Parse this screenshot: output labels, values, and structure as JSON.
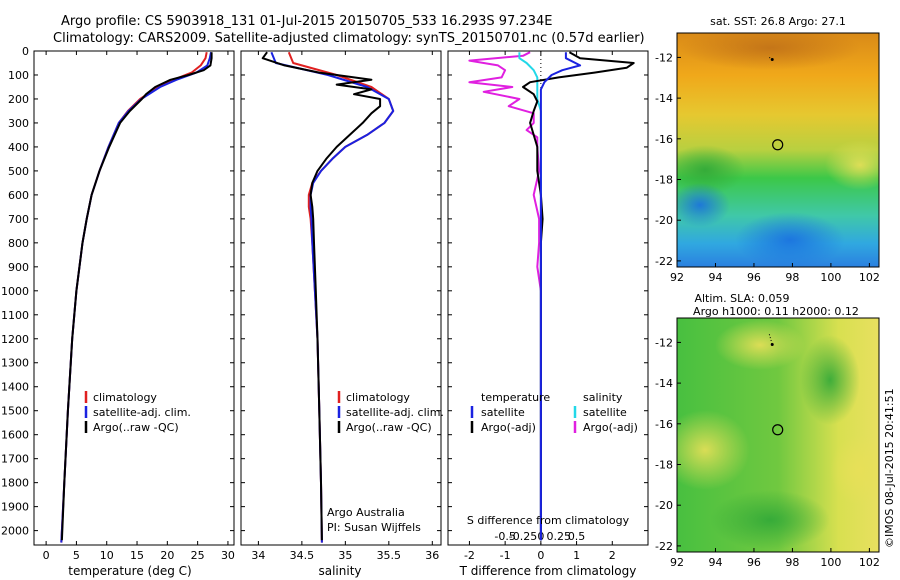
{
  "header": {
    "line1": "Argo profile: CS 5903918_131 01-Jul-2015 20150705_533 16.293S 97.234E",
    "line2": "Climatology: CARS2009. Satellite-adjusted climatology: synTS_20150701.nc (0.57d earlier)"
  },
  "depth_axis": {
    "ticks": [
      0,
      100,
      200,
      300,
      400,
      500,
      600,
      700,
      800,
      900,
      1000,
      1100,
      1200,
      1300,
      1400,
      1500,
      1600,
      1700,
      1800,
      1900,
      2000
    ],
    "range": [
      0,
      2060
    ]
  },
  "colors": {
    "climatology": "#e02020",
    "satellite": "#1a22e0",
    "argo": "#000000",
    "salinity_sat": "#22d8e8",
    "salinity_argo": "#e020e0"
  },
  "chart_data": [
    {
      "type": "line",
      "name": "temperature",
      "xlabel": "temperature (deg C)",
      "xlim": [
        -2,
        31
      ],
      "xticks": [
        0,
        5,
        10,
        15,
        20,
        25,
        30
      ],
      "legend": [
        "climatology",
        "satellite-adj. clim.",
        "Argo(..raw -QC)"
      ],
      "series": [
        {
          "name": "climatology",
          "depth": [
            5,
            30,
            60,
            90,
            120,
            150,
            200,
            250,
            300,
            400,
            500,
            600,
            700,
            800,
            1000,
            1200,
            1500,
            1800,
            2050
          ],
          "values": [
            26.5,
            26.3,
            25.5,
            24.0,
            21.0,
            18.5,
            15.5,
            13.5,
            12.0,
            10.3,
            8.8,
            7.5,
            6.7,
            6.0,
            5.0,
            4.3,
            3.6,
            3.0,
            2.5
          ]
        },
        {
          "name": "satellite",
          "depth": [
            5,
            30,
            60,
            90,
            120,
            150,
            200,
            250,
            300,
            400,
            500,
            600,
            700,
            800,
            1000,
            1200,
            1500,
            1800,
            2050
          ],
          "values": [
            27.2,
            27.0,
            26.6,
            24.8,
            21.5,
            18.8,
            15.7,
            13.6,
            12.0,
            10.3,
            8.8,
            7.5,
            6.7,
            6.0,
            5.0,
            4.3,
            3.6,
            3.0,
            2.5
          ]
        },
        {
          "name": "argo",
          "depth": [
            5,
            30,
            60,
            80,
            100,
            120,
            150,
            180,
            200,
            250,
            300,
            400,
            500,
            600,
            700,
            800,
            1000,
            1200,
            1500,
            1800,
            2040
          ],
          "values": [
            27.3,
            27.3,
            27.1,
            26.0,
            23.5,
            20.5,
            18.0,
            16.5,
            15.8,
            13.8,
            12.2,
            10.4,
            8.8,
            7.5,
            6.7,
            6.0,
            5.0,
            4.3,
            3.6,
            3.0,
            2.6
          ]
        }
      ]
    },
    {
      "type": "line",
      "name": "salinity",
      "xlabel": "salinity",
      "xlim": [
        33.8,
        36.1
      ],
      "xticks": [
        34,
        34.5,
        35,
        35.5,
        36
      ],
      "legend": [
        "climatology",
        "satellite-adj. clim.",
        "Argo(..raw -QC)"
      ],
      "annotations": [
        "Argo Australia",
        "PI: Susan Wijffels"
      ],
      "series": [
        {
          "name": "climatology",
          "depth": [
            5,
            50,
            100,
            150,
            200,
            250,
            300,
            350,
            400,
            450,
            500,
            550,
            600,
            650,
            700,
            800,
            1000,
            1200,
            1500,
            1800,
            2050
          ],
          "values": [
            34.35,
            34.4,
            34.9,
            35.3,
            35.5,
            35.55,
            35.45,
            35.25,
            35.0,
            34.85,
            34.72,
            34.62,
            34.58,
            34.58,
            34.6,
            34.62,
            34.65,
            34.68,
            34.7,
            34.72,
            34.73
          ]
        },
        {
          "name": "satellite",
          "depth": [
            5,
            50,
            100,
            150,
            200,
            250,
            300,
            350,
            400,
            450,
            500,
            550,
            600,
            650,
            700,
            800,
            1000,
            1200,
            1500,
            1800,
            2050
          ],
          "values": [
            34.15,
            34.2,
            34.8,
            35.25,
            35.5,
            35.55,
            35.45,
            35.25,
            35.0,
            34.85,
            34.72,
            34.63,
            34.6,
            34.6,
            34.61,
            34.62,
            34.65,
            34.68,
            34.7,
            34.72,
            34.73
          ]
        },
        {
          "name": "argo",
          "depth": [
            5,
            30,
            60,
            90,
            120,
            140,
            160,
            180,
            200,
            230,
            260,
            300,
            350,
            400,
            450,
            500,
            550,
            600,
            650,
            700,
            800,
            1000,
            1200,
            1500,
            1800,
            2040
          ],
          "values": [
            34.1,
            34.05,
            34.3,
            34.7,
            35.3,
            34.9,
            35.3,
            35.1,
            35.4,
            35.4,
            35.3,
            35.2,
            35.05,
            34.9,
            34.78,
            34.68,
            34.62,
            34.6,
            34.62,
            34.63,
            34.64,
            34.66,
            34.68,
            34.7,
            34.72,
            34.73
          ]
        }
      ]
    },
    {
      "type": "line",
      "name": "difference",
      "xlabel": "T difference from climatology",
      "top_label": "S difference from climatology",
      "xlim": [
        -2.6,
        3.0
      ],
      "xticks": [
        -2,
        -1,
        0,
        1,
        2
      ],
      "top_ticks": [
        -0.5,
        -0.25,
        0,
        0.25,
        0.5
      ],
      "legend_temperature": [
        "temperature",
        "satellite",
        "Argo(-adj)"
      ],
      "legend_salinity": [
        "salinity",
        "satellite",
        "Argo(-adj)"
      ],
      "series": [
        {
          "name": "temperature satellite",
          "depth": [
            5,
            30,
            60,
            80,
            100,
            130,
            160,
            200,
            250,
            300,
            400,
            600,
            1000,
            1500,
            2040
          ],
          "values": [
            0.7,
            0.7,
            1.1,
            0.6,
            0.3,
            0.1,
            0.0,
            0.0,
            0.0,
            0.0,
            0.0,
            0.0,
            0.0,
            0.0,
            0.0
          ]
        },
        {
          "name": "temperature Argo",
          "depth": [
            5,
            30,
            50,
            70,
            90,
            110,
            130,
            150,
            180,
            210,
            250,
            300,
            350,
            400,
            500,
            600,
            700,
            800,
            1000,
            1500,
            2040
          ],
          "values": [
            0.8,
            1.1,
            2.6,
            2.4,
            1.5,
            0.5,
            -0.3,
            -0.5,
            -0.2,
            -0.1,
            -0.2,
            -0.3,
            -0.2,
            -0.1,
            -0.1,
            0.0,
            0.05,
            0.0,
            0.0,
            0.0,
            0.0
          ]
        },
        {
          "name": "salinity satellite",
          "depth": [
            5,
            30,
            50,
            80,
            110,
            150,
            200,
            250,
            300,
            400,
            600,
            1000,
            1500,
            2040
          ],
          "values": [
            -0.6,
            -0.6,
            -0.4,
            -0.2,
            -0.1,
            -0.1,
            -0.1,
            0.0,
            0.0,
            0.0,
            0.0,
            0.0,
            0.0,
            0.0
          ]
        },
        {
          "name": "salinity Argo",
          "depth": [
            5,
            20,
            40,
            60,
            80,
            110,
            130,
            150,
            170,
            200,
            230,
            260,
            300,
            330,
            360,
            400,
            500,
            600,
            700,
            800,
            900,
            1000,
            1200,
            1500,
            2040
          ],
          "values": [
            -0.3,
            -0.5,
            -2.0,
            -1.2,
            -1.0,
            -1.1,
            -2.0,
            -0.8,
            -1.6,
            -0.6,
            -0.9,
            -0.2,
            -0.2,
            -0.4,
            -0.1,
            -0.1,
            -0.05,
            -0.2,
            -0.05,
            -0.05,
            -0.1,
            0.0,
            0.0,
            0.0,
            0.0
          ]
        }
      ]
    },
    {
      "type": "heatmap",
      "name": "sst_map",
      "title": "sat. SST: 26.8 Argo: 27.1",
      "xlim": [
        92,
        102.5
      ],
      "ylim": [
        -22.3,
        -10.8
      ],
      "xticks": [
        92,
        94,
        96,
        98,
        100,
        102
      ],
      "yticks": [
        -12,
        -14,
        -16,
        -18,
        -20,
        -22
      ],
      "marker": {
        "lon": 97.234,
        "lat": -16.293
      },
      "track": [
        {
          "lon": 96.8,
          "lat": -12.0
        },
        {
          "lon": 96.95,
          "lat": -12.1
        }
      ]
    },
    {
      "type": "heatmap",
      "name": "sla_map",
      "title": "Altim. SLA: 0.059",
      "subtitle": "Argo h1000: 0.11 h2000: 0.12",
      "xlim": [
        92,
        102.5
      ],
      "ylim": [
        -22.3,
        -10.8
      ],
      "xticks": [
        92,
        94,
        96,
        98,
        100,
        102
      ],
      "yticks": [
        -12,
        -14,
        -16,
        -18,
        -20,
        -22
      ],
      "marker": {
        "lon": 97.234,
        "lat": -16.293
      },
      "track": [
        {
          "lon": 96.8,
          "lat": -11.6
        },
        {
          "lon": 96.95,
          "lat": -12.1
        }
      ]
    }
  ],
  "credit": "©IMOS 08-Jul-2015 20:41:51"
}
